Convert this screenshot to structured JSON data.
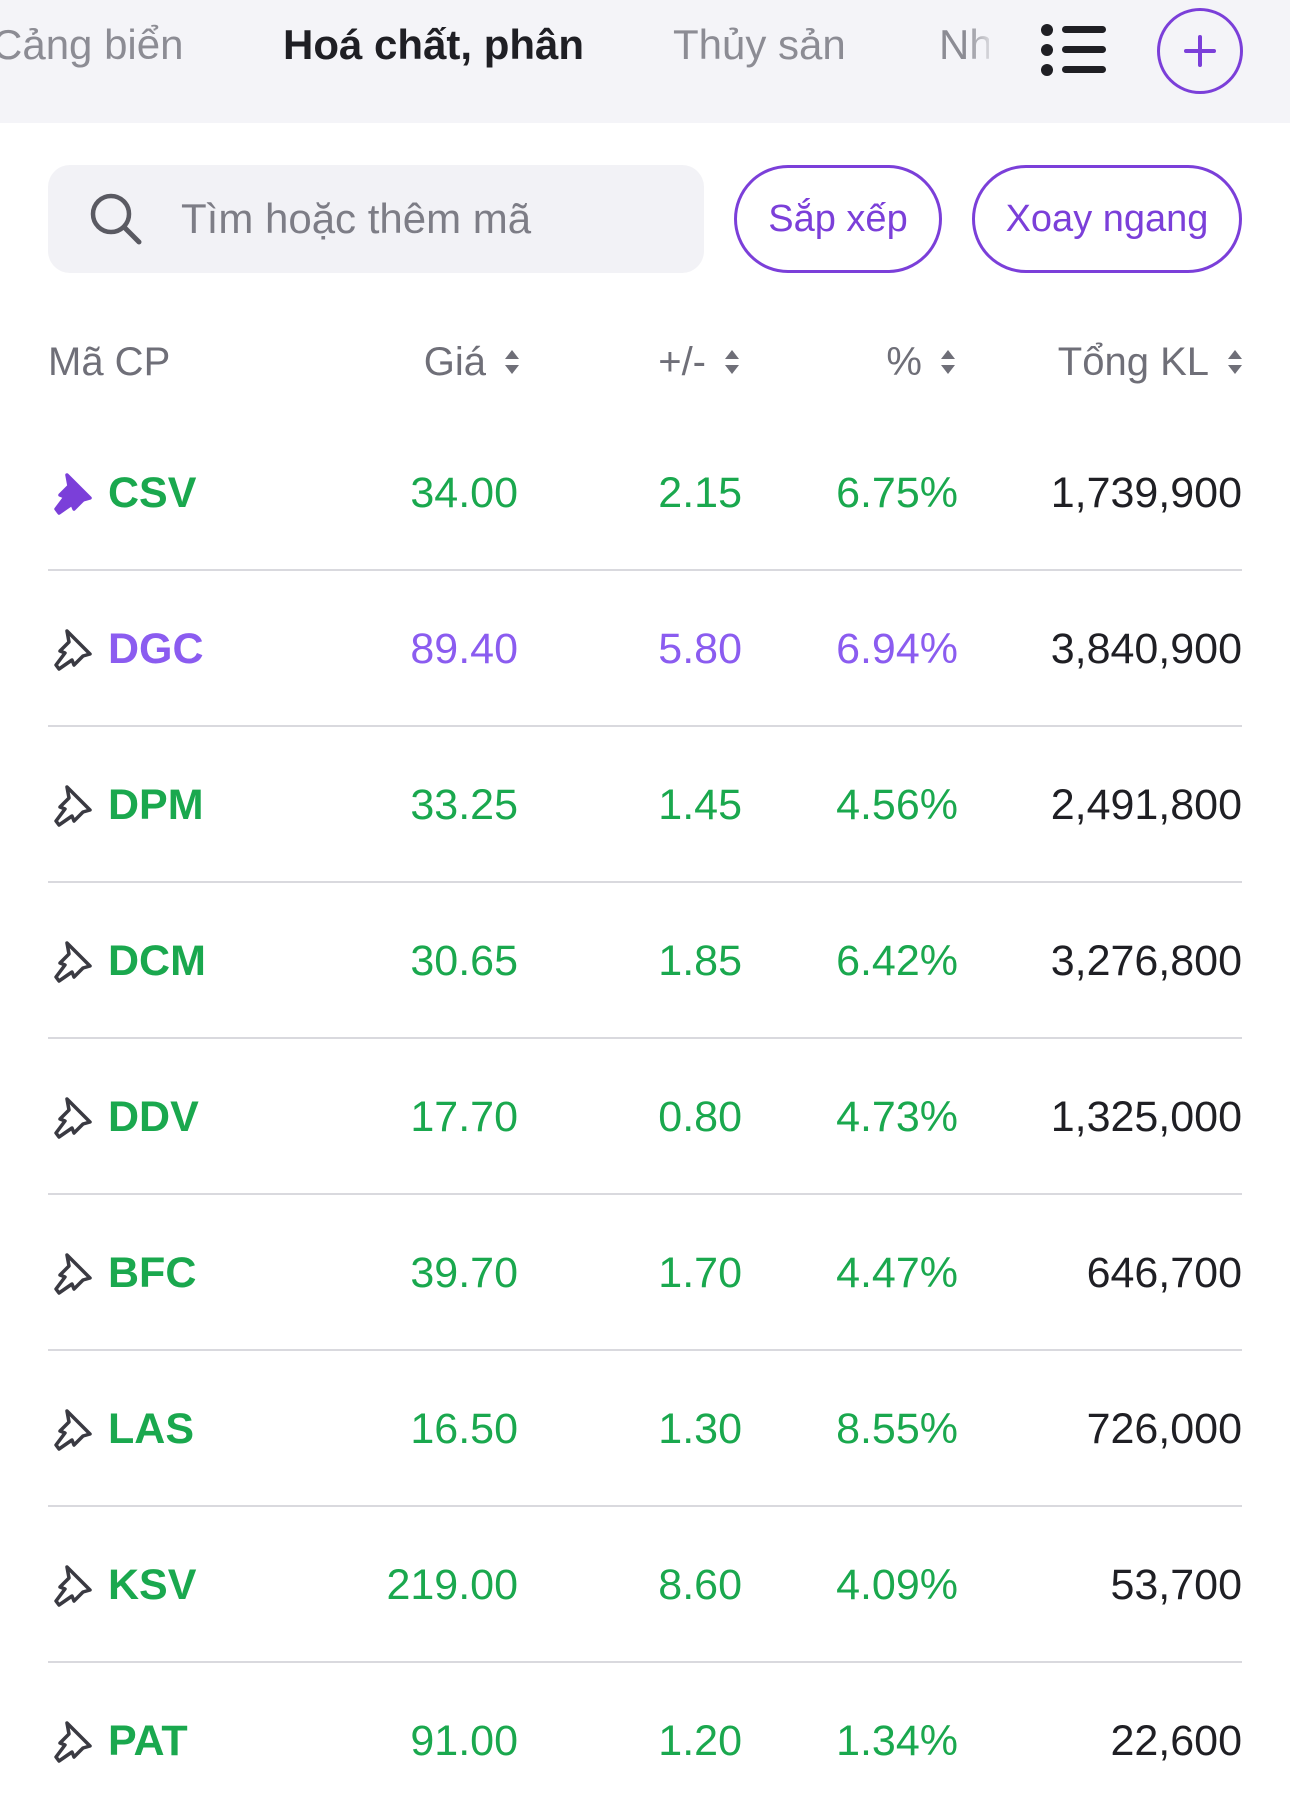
{
  "tabs": [
    {
      "label": "Cảng biển",
      "active": false
    },
    {
      "label": "Hoá chất, phân",
      "active": true
    },
    {
      "label": "Thủy sản",
      "active": false
    },
    {
      "label": "Nh",
      "active": false
    }
  ],
  "search": {
    "placeholder": "Tìm hoặc thêm mã"
  },
  "buttons": {
    "sort": "Sắp xếp",
    "rotate": "Xoay ngang"
  },
  "table": {
    "headers": {
      "code": "Mã CP",
      "price": "Giá",
      "change": "+/-",
      "pct": "%",
      "volume": "Tổng KL"
    },
    "rows": [
      {
        "code": "CSV",
        "price": "34.00",
        "change": "2.15",
        "pct": "6.75%",
        "volume": "1,739,900",
        "pinned": true,
        "state": "up"
      },
      {
        "code": "DGC",
        "price": "89.40",
        "change": "5.80",
        "pct": "6.94%",
        "volume": "3,840,900",
        "pinned": false,
        "state": "ceil"
      },
      {
        "code": "DPM",
        "price": "33.25",
        "change": "1.45",
        "pct": "4.56%",
        "volume": "2,491,800",
        "pinned": false,
        "state": "up"
      },
      {
        "code": "DCM",
        "price": "30.65",
        "change": "1.85",
        "pct": "6.42%",
        "volume": "3,276,800",
        "pinned": false,
        "state": "up"
      },
      {
        "code": "DDV",
        "price": "17.70",
        "change": "0.80",
        "pct": "4.73%",
        "volume": "1,325,000",
        "pinned": false,
        "state": "up"
      },
      {
        "code": "BFC",
        "price": "39.70",
        "change": "1.70",
        "pct": "4.47%",
        "volume": "646,700",
        "pinned": false,
        "state": "up"
      },
      {
        "code": "LAS",
        "price": "16.50",
        "change": "1.30",
        "pct": "8.55%",
        "volume": "726,000",
        "pinned": false,
        "state": "up"
      },
      {
        "code": "KSV",
        "price": "219.00",
        "change": "8.60",
        "pct": "4.09%",
        "volume": "53,700",
        "pinned": false,
        "state": "up"
      },
      {
        "code": "PAT",
        "price": "91.00",
        "change": "1.20",
        "pct": "1.34%",
        "volume": "22,600",
        "pinned": false,
        "state": "up"
      }
    ]
  },
  "colors": {
    "accent": "#7b3fd9",
    "up": "#1aa84e",
    "ceiling": "#8b5cf0",
    "pin_active": "#7b3fd9"
  },
  "icons": {
    "list": "list-icon",
    "add": "plus-icon",
    "search": "search-icon",
    "pin": "pin-icon",
    "sort": "sort-icon"
  }
}
